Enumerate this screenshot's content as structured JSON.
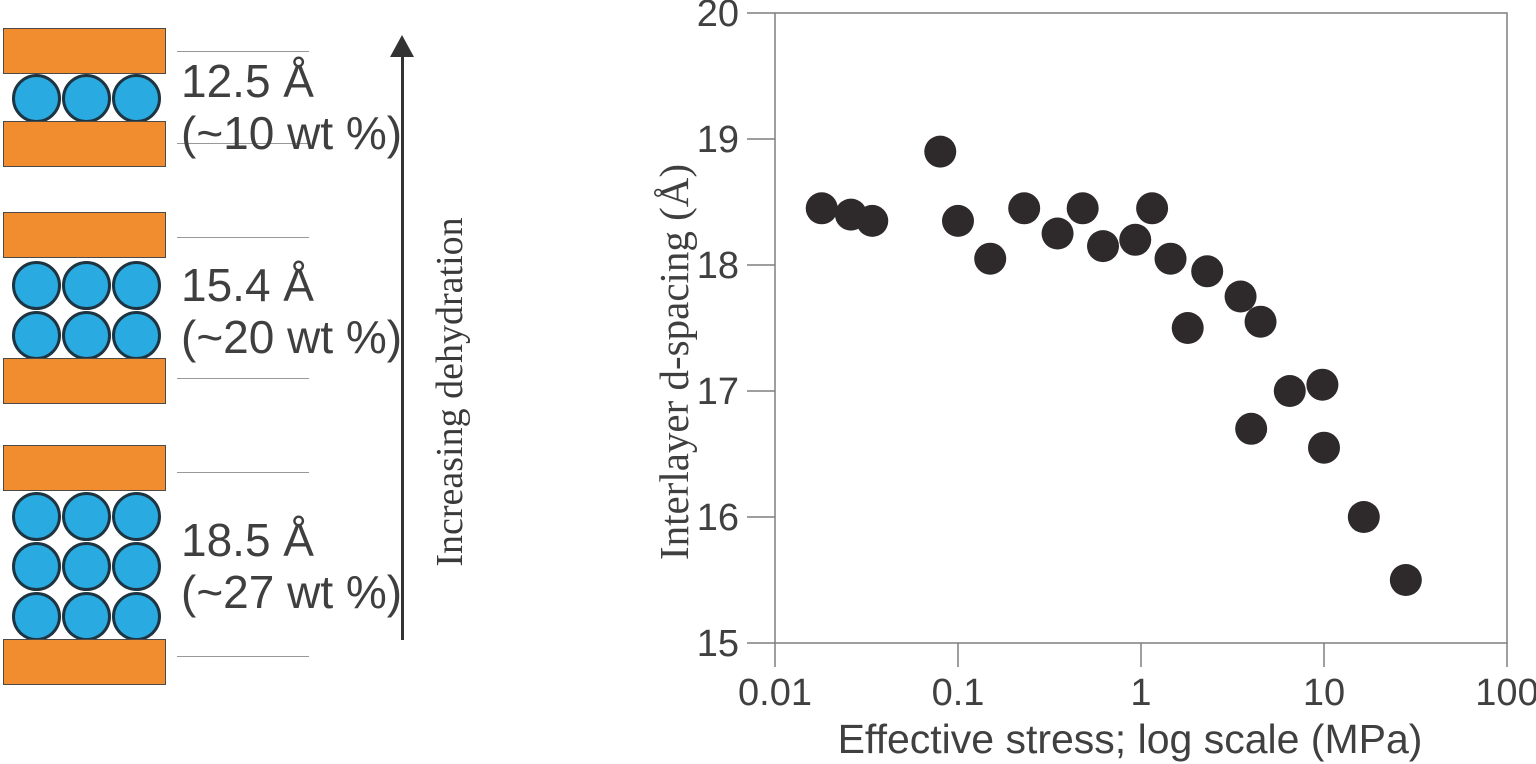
{
  "diagram": {
    "arrow_label": "Increasing dehydration",
    "clay_color": "#F18C2F",
    "water_fill": "#29ABE2",
    "water_stroke": "#1E3440",
    "label_color": "#3F3F3F",
    "bracket_line_color": "#999999",
    "arrow_color": "#333333",
    "states": [
      {
        "name": "one-water-layer",
        "spacing_label": "12.5 Å",
        "water_label": "(~10 wt %)",
        "water_rows": 1
      },
      {
        "name": "two-water-layers",
        "spacing_label": "15.4 Å",
        "water_label": "(~20 wt %)",
        "water_rows": 2
      },
      {
        "name": "three-water-layers",
        "spacing_label": "18.5 Å",
        "water_label": "(~27 wt %)",
        "water_rows": 3
      }
    ]
  },
  "chart_data": {
    "type": "scatter",
    "title": "",
    "xlabel": "Effective stress; log scale (MPa)",
    "ylabel": "Interlayer d-spacing (Å)",
    "x_scale": "log",
    "xlim": [
      0.01,
      100
    ],
    "ylim": [
      15,
      20
    ],
    "x_tick_labels": [
      "0.01",
      "0.1",
      "1",
      "10",
      "100"
    ],
    "y_tick_labels": [
      "15",
      "16",
      "17",
      "18",
      "19",
      "20"
    ],
    "grid": false,
    "legend": "none",
    "axis_color": "#7F7F7F",
    "tick_label_color": "#404040",
    "marker": {
      "shape": "circle",
      "color": "#2E2A2B",
      "radius_px": 16
    },
    "points": [
      {
        "x": 0.018,
        "y": 18.45
      },
      {
        "x": 0.026,
        "y": 18.4
      },
      {
        "x": 0.034,
        "y": 18.35
      },
      {
        "x": 0.08,
        "y": 18.9
      },
      {
        "x": 0.1,
        "y": 18.35
      },
      {
        "x": 0.15,
        "y": 18.05
      },
      {
        "x": 0.23,
        "y": 18.45
      },
      {
        "x": 0.35,
        "y": 18.25
      },
      {
        "x": 0.48,
        "y": 18.45
      },
      {
        "x": 0.62,
        "y": 18.15
      },
      {
        "x": 0.93,
        "y": 18.2
      },
      {
        "x": 1.15,
        "y": 18.45
      },
      {
        "x": 1.45,
        "y": 18.05
      },
      {
        "x": 1.8,
        "y": 17.5
      },
      {
        "x": 2.3,
        "y": 17.95
      },
      {
        "x": 3.5,
        "y": 17.75
      },
      {
        "x": 4.0,
        "y": 16.7
      },
      {
        "x": 4.5,
        "y": 17.55
      },
      {
        "x": 6.5,
        "y": 17.0
      },
      {
        "x": 9.8,
        "y": 17.05
      },
      {
        "x": 10.0,
        "y": 16.55
      },
      {
        "x": 16.5,
        "y": 16.0
      },
      {
        "x": 28,
        "y": 15.5
      }
    ]
  }
}
